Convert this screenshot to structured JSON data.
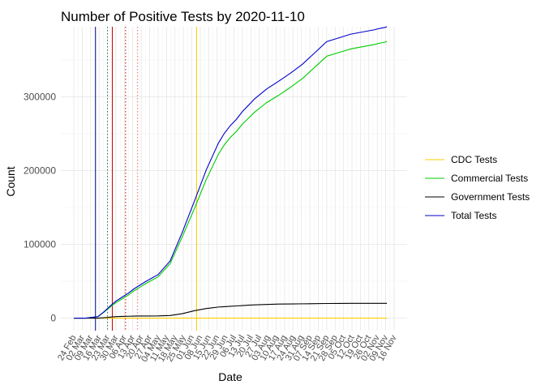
{
  "chart_data": {
    "type": "line",
    "title": "Number of Positive Tests by  2020-11-10",
    "xlabel": "Date",
    "ylabel": "Count",
    "x_ticks": [
      "24 Feb",
      "02 Mar",
      "09 Mar",
      "16 Mar",
      "23 Mar",
      "30 Mar",
      "06 Apr",
      "13 Apr",
      "20 Apr",
      "27 Apr",
      "04 May",
      "11 May",
      "18 May",
      "25 May",
      "01 Jun",
      "08 Jun",
      "15 Jun",
      "22 Jun",
      "29 Jun",
      "06 Jul",
      "13 Jul",
      "20 Jul",
      "27 Jul",
      "03 Aug",
      "10 Aug",
      "17 Aug",
      "24 Aug",
      "31 Aug",
      "07 Sep",
      "14 Sep",
      "21 Sep",
      "28 Sep",
      "05 Oct",
      "12 Oct",
      "19 Oct",
      "26 Oct",
      "02 Nov",
      "09 Nov",
      "16 Nov"
    ],
    "y_ticks": [
      0,
      100000,
      200000,
      300000
    ],
    "ylim": [
      -17000,
      395000
    ],
    "grid": true,
    "legend_position": "right",
    "x_day_offsets": [
      0,
      10,
      20,
      25,
      28,
      31,
      35,
      40,
      45,
      50,
      55,
      60,
      70,
      80,
      90,
      100,
      110,
      115,
      120,
      125,
      130,
      135,
      140,
      145,
      150,
      160,
      170,
      180,
      190,
      200,
      210,
      220,
      230,
      240,
      250,
      252,
      255,
      258,
      260
    ],
    "series": [
      {
        "name": "CDC Tests",
        "color": "#ffcc00",
        "values": [
          0,
          0,
          0,
          0,
          0,
          0,
          0,
          0,
          0,
          0,
          0,
          0,
          0,
          0,
          0,
          0,
          0,
          0,
          0,
          0,
          0,
          0,
          0,
          0,
          0,
          0,
          0,
          0,
          0,
          0,
          0,
          0,
          0,
          0,
          0,
          0,
          0,
          0,
          0
        ]
      },
      {
        "name": "Commercial Tests",
        "color": "#00cc00",
        "values": [
          0,
          0,
          2000,
          8000,
          12000,
          16000,
          21000,
          26000,
          31000,
          37000,
          42000,
          47000,
          56000,
          74000,
          110000,
          148000,
          188000,
          205000,
          222000,
          235000,
          245000,
          253000,
          263000,
          271000,
          279000,
          292000,
          302000,
          313000,
          325000,
          340000,
          355000,
          360000,
          365000,
          368000,
          371000,
          372000,
          373000,
          374000,
          375000
        ]
      },
      {
        "name": "Government Tests",
        "color": "#000000",
        "values": [
          0,
          0,
          0,
          500,
          1000,
          1500,
          2000,
          2300,
          2500,
          2700,
          2800,
          2900,
          3000,
          3500,
          6000,
          10000,
          13000,
          14000,
          15000,
          15500,
          16000,
          16500,
          17000,
          17500,
          18000,
          18500,
          19000,
          19200,
          19400,
          19600,
          19800,
          19900,
          20000,
          20000,
          20000,
          20000,
          20000,
          20000,
          20000
        ]
      },
      {
        "name": "Total Tests",
        "color": "#0000cc",
        "values": [
          0,
          0,
          2000,
          8500,
          13000,
          17500,
          23000,
          28300,
          33500,
          39700,
          44800,
          49900,
          59000,
          77500,
          116000,
          158000,
          201000,
          219000,
          237000,
          250500,
          261000,
          269500,
          280000,
          288500,
          297000,
          310500,
          321000,
          332200,
          344400,
          359600,
          374800,
          379900,
          385000,
          388000,
          391000,
          392000,
          393000,
          394000,
          395000
        ]
      }
    ],
    "reference_lines": [
      {
        "date": "13 Mar",
        "color": "#00008b",
        "style": "solid"
      },
      {
        "date": "23 Mar",
        "color": "#1a6b6b",
        "style": "dotted"
      },
      {
        "date": "27 Mar",
        "color": "#cc0000",
        "style": "solid"
      },
      {
        "date": "07 Apr",
        "color": "#cc0000",
        "style": "dotted"
      },
      {
        "date": "17 Apr",
        "color": "#ff6666",
        "style": "dotted"
      },
      {
        "date": "05 Jun",
        "color": "#ffcc00",
        "style": "solid"
      }
    ]
  }
}
